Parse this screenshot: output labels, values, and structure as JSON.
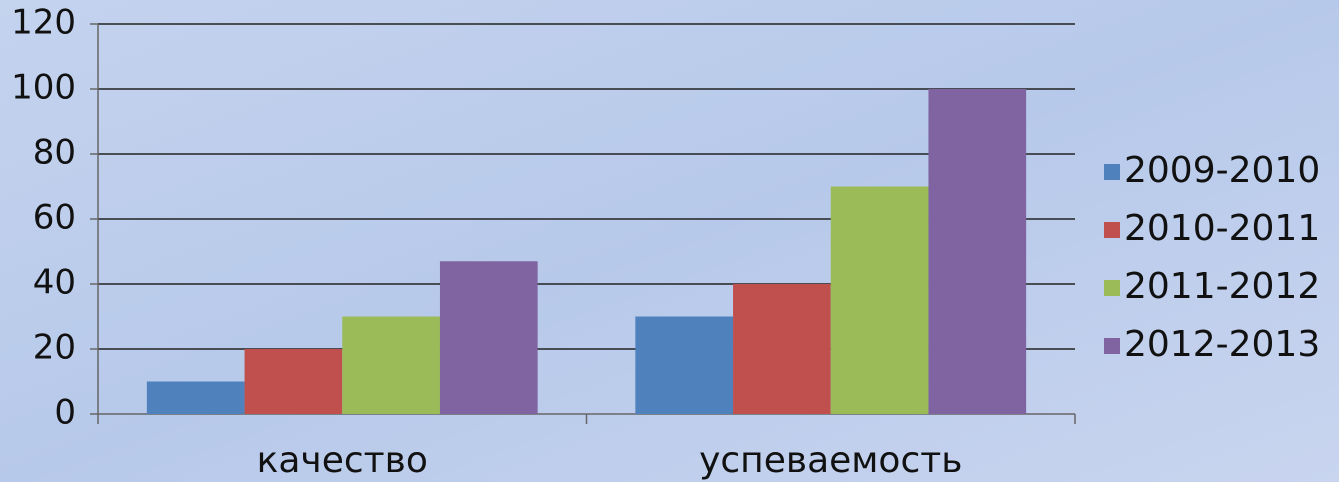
{
  "chart_data": {
    "type": "bar",
    "categories": [
      "качество",
      "успеваемость"
    ],
    "series": [
      {
        "name": "2009-2010",
        "color": "#4f81bd",
        "values": [
          10,
          30
        ]
      },
      {
        "name": "2010-2011",
        "color": "#c0504d",
        "values": [
          20,
          40
        ]
      },
      {
        "name": "2011-2012",
        "color": "#9bbb59",
        "values": [
          30,
          70
        ]
      },
      {
        "name": "2012-2013",
        "color": "#8064a2",
        "values": [
          47,
          100
        ]
      }
    ],
    "ylim": [
      0,
      120
    ],
    "yticks": [
      0,
      20,
      40,
      60,
      80,
      100,
      120
    ],
    "grid": true,
    "legend": "right"
  }
}
